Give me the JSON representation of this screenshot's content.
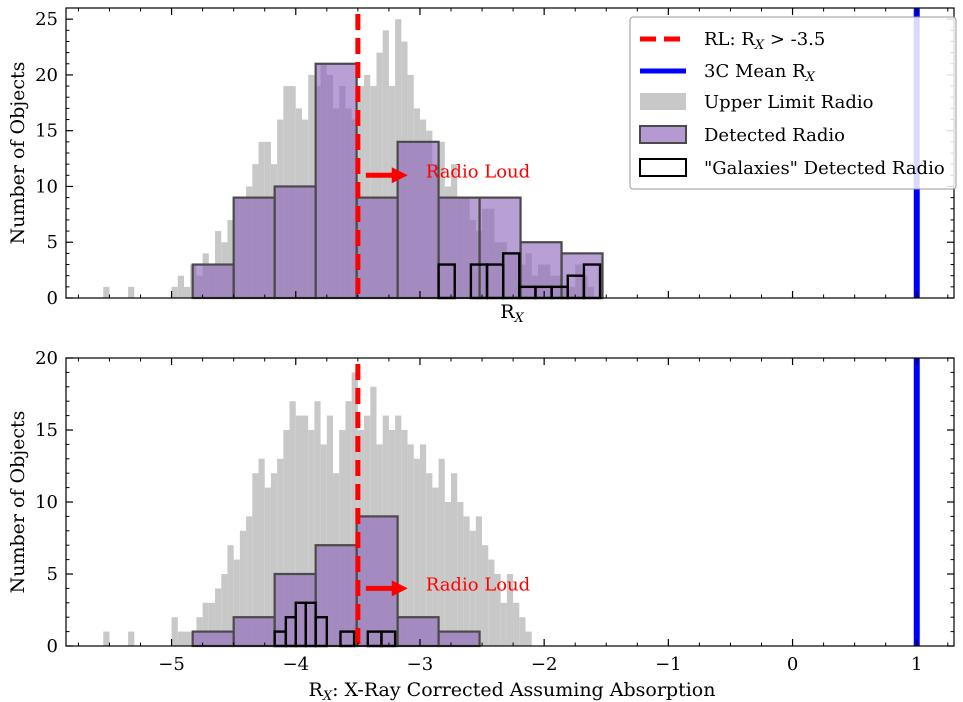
{
  "chart_data": [
    {
      "type": "bar",
      "title": "",
      "xlabel": "R_X",
      "ylabel": "Number of Objects",
      "xlim": [
        -5.85,
        1.3
      ],
      "ylim": [
        0,
        26
      ],
      "y_ticks": [
        0,
        5,
        10,
        15,
        20,
        25
      ],
      "x_ticks": [
        -5,
        -4,
        -3,
        -2,
        -1,
        0,
        1
      ],
      "x_tick_labels_shown": false,
      "grid": false,
      "legend_position": "top-right",
      "annotation": {
        "text": "Radio Loud",
        "arrow_from": -3.5,
        "arrow_to": -3.05,
        "y": 11
      },
      "series": [
        {
          "name": "Upper Limit Radio",
          "kind": "histogram-filled",
          "color": "#c8c8c8",
          "bin_width": 0.05,
          "x": [
            -5.55,
            -5.35,
            -5.0,
            -4.95,
            -4.9,
            -4.85,
            -4.8,
            -4.75,
            -4.7,
            -4.65,
            -4.6,
            -4.55,
            -4.5,
            -4.45,
            -4.4,
            -4.35,
            -4.3,
            -4.25,
            -4.2,
            -4.15,
            -4.1,
            -4.05,
            -4.0,
            -3.95,
            -3.9,
            -3.85,
            -3.8,
            -3.75,
            -3.7,
            -3.65,
            -3.6,
            -3.55,
            -3.5,
            -3.45,
            -3.4,
            -3.35,
            -3.3,
            -3.25,
            -3.2,
            -3.15,
            -3.1,
            -3.05,
            -3.0,
            -2.95,
            -2.9,
            -2.85,
            -2.8,
            -2.75,
            -2.7,
            -2.65,
            -2.6,
            -2.55,
            -2.5,
            -2.45,
            -2.4,
            -2.35,
            -2.3,
            -2.25,
            -2.2,
            -2.15,
            -2.1,
            -2.05,
            -2.0,
            -1.95,
            -1.9,
            -1.85,
            -1.8,
            -1.75,
            -1.7,
            -1.65
          ],
          "values": [
            1,
            1,
            1,
            2,
            1,
            3,
            2,
            4,
            3,
            6,
            5,
            7,
            9,
            9,
            10,
            12,
            14,
            14,
            12,
            16,
            19,
            19,
            17,
            16,
            20,
            19,
            21,
            20,
            17,
            19,
            17,
            16,
            19,
            20,
            19,
            22,
            24,
            19,
            25,
            23,
            20,
            17,
            16,
            15,
            12,
            14,
            10,
            12,
            9,
            9,
            7,
            6,
            8,
            8,
            5,
            5,
            4,
            4,
            3,
            4,
            2,
            3,
            3,
            2,
            2,
            1,
            1,
            3,
            2,
            1
          ]
        },
        {
          "name": "Detected Radio",
          "kind": "histogram-bars",
          "color": "#8c64b9",
          "edges": [
            -4.83,
            -4.5,
            -4.17,
            -3.84,
            -3.51,
            -3.18,
            -2.85,
            -2.52,
            -2.19,
            -1.86,
            -1.53
          ],
          "values": [
            3,
            9,
            10,
            21,
            9,
            14,
            9,
            9,
            5,
            4
          ]
        },
        {
          "name": "\"Galaxies\" Detected Radio",
          "kind": "histogram-outline",
          "color": "#000000",
          "edges": [
            -2.85,
            -2.72,
            -2.59,
            -2.46,
            -2.33,
            -2.2,
            -2.07,
            -1.94,
            -1.81,
            -1.68,
            -1.55
          ],
          "values": [
            3,
            0,
            3,
            3,
            4,
            1,
            1,
            1,
            2,
            3
          ]
        },
        {
          "name": "RL: R_X > -3.5",
          "kind": "vline-dashed",
          "color": "#ff0000",
          "x": -3.5
        },
        {
          "name": "3C Mean R_X",
          "kind": "vline",
          "color": "#0000ff",
          "x": 1.0
        }
      ]
    },
    {
      "type": "bar",
      "title": "",
      "xlabel": "R_X: X-Ray Corrected Assuming Absorption",
      "ylabel": "Number of Objects",
      "xlim": [
        -5.85,
        1.3
      ],
      "ylim": [
        0,
        20
      ],
      "y_ticks": [
        0,
        5,
        10,
        15,
        20
      ],
      "x_ticks": [
        -5,
        -4,
        -3,
        -2,
        -1,
        0,
        1
      ],
      "x_tick_labels_shown": true,
      "grid": false,
      "annotation": {
        "text": "Radio Loud",
        "arrow_from": -3.5,
        "arrow_to": -3.05,
        "y": 4
      },
      "series": [
        {
          "name": "Upper Limit Radio",
          "kind": "histogram-filled",
          "color": "#c8c8c8",
          "bin_width": 0.05,
          "x": [
            -5.55,
            -5.35,
            -5.0,
            -4.95,
            -4.9,
            -4.85,
            -4.8,
            -4.75,
            -4.7,
            -4.65,
            -4.6,
            -4.55,
            -4.5,
            -4.45,
            -4.4,
            -4.35,
            -4.3,
            -4.25,
            -4.2,
            -4.15,
            -4.1,
            -4.05,
            -4.0,
            -3.95,
            -3.9,
            -3.85,
            -3.8,
            -3.75,
            -3.7,
            -3.65,
            -3.6,
            -3.55,
            -3.5,
            -3.45,
            -3.4,
            -3.35,
            -3.3,
            -3.25,
            -3.2,
            -3.15,
            -3.1,
            -3.05,
            -3.0,
            -2.95,
            -2.9,
            -2.85,
            -2.8,
            -2.75,
            -2.7,
            -2.65,
            -2.6,
            -2.55,
            -2.5,
            -2.45,
            -2.4,
            -2.35,
            -2.3,
            -2.25,
            -2.2,
            -2.15
          ],
          "values": [
            1,
            1,
            2,
            1,
            1,
            1,
            2,
            3,
            3,
            4,
            5,
            7,
            6,
            8,
            9,
            12,
            13,
            11,
            12,
            13,
            15,
            17,
            16,
            16,
            15,
            17,
            14,
            16,
            12,
            15,
            17,
            19,
            15,
            16,
            18,
            14,
            16,
            15,
            16,
            15,
            14,
            13,
            14,
            12,
            11,
            13,
            10,
            12,
            10,
            9,
            8,
            9,
            7,
            6,
            5,
            3,
            5,
            3,
            2,
            1
          ]
        },
        {
          "name": "Detected Radio",
          "kind": "histogram-bars",
          "color": "#8c64b9",
          "edges": [
            -4.83,
            -4.5,
            -4.17,
            -3.84,
            -3.51,
            -3.18,
            -2.85,
            -2.52
          ],
          "values": [
            1,
            2,
            5,
            7,
            9,
            2,
            1
          ]
        },
        {
          "name": "\"Galaxies\" Detected Radio",
          "kind": "histogram-outline",
          "color": "#000000",
          "edges": [
            -3.75,
            -3.64,
            -3.53,
            -3.42,
            -3.31,
            -3.2
          ],
          "values": [
            0,
            1,
            0,
            1,
            1
          ]
        },
        {
          "name": "\"Galaxies\" Detected Radio",
          "kind": "histogram-outline",
          "color": "#000000",
          "edges": [
            -4.17,
            -4.08,
            -4.0,
            -3.92,
            -3.84,
            -3.75
          ],
          "values": [
            1,
            2,
            3,
            3,
            2
          ]
        },
        {
          "name": "RL: R_X > -3.5",
          "kind": "vline-dashed",
          "color": "#ff0000",
          "x": -3.5
        },
        {
          "name": "3C Mean R_X",
          "kind": "vline",
          "color": "#0000ff",
          "x": 1.0
        }
      ]
    }
  ],
  "tick_labels": {
    "x": [
      "−5",
      "−4",
      "−3",
      "−2",
      "−1",
      "0",
      "1"
    ],
    "y_top": [
      "0",
      "5",
      "10",
      "15",
      "20",
      "25"
    ],
    "y_bottom": [
      "0",
      "5",
      "10",
      "15",
      "20"
    ]
  },
  "labels": {
    "ylabel": "Number of Objects",
    "top_xlabel_main": "R",
    "top_xlabel_sub": "X",
    "bottom_xlabel_main": "R",
    "bottom_xlabel_sub": "X",
    "bottom_xlabel_rest": ": X-Ray Corrected Assuming Absorption",
    "annotation": "Radio Loud"
  },
  "legend": {
    "items": [
      {
        "id": "rl",
        "pre": "RL: R",
        "sub": "X",
        "post": " > -3.5"
      },
      {
        "id": "mean",
        "pre": "3C Mean R",
        "sub": "X",
        "post": ""
      },
      {
        "id": "upper",
        "pre": "Upper Limit Radio",
        "sub": "",
        "post": ""
      },
      {
        "id": "detected",
        "pre": "Detected Radio",
        "sub": "",
        "post": ""
      },
      {
        "id": "galaxies",
        "pre": "\"Galaxies\" Detected Radio",
        "sub": "",
        "post": ""
      }
    ]
  },
  "colors": {
    "upper": "#c8c8c8",
    "detected": "#8c64b9",
    "galaxies": "#000000",
    "rl": "#ff0000",
    "mean": "#0000ff"
  }
}
